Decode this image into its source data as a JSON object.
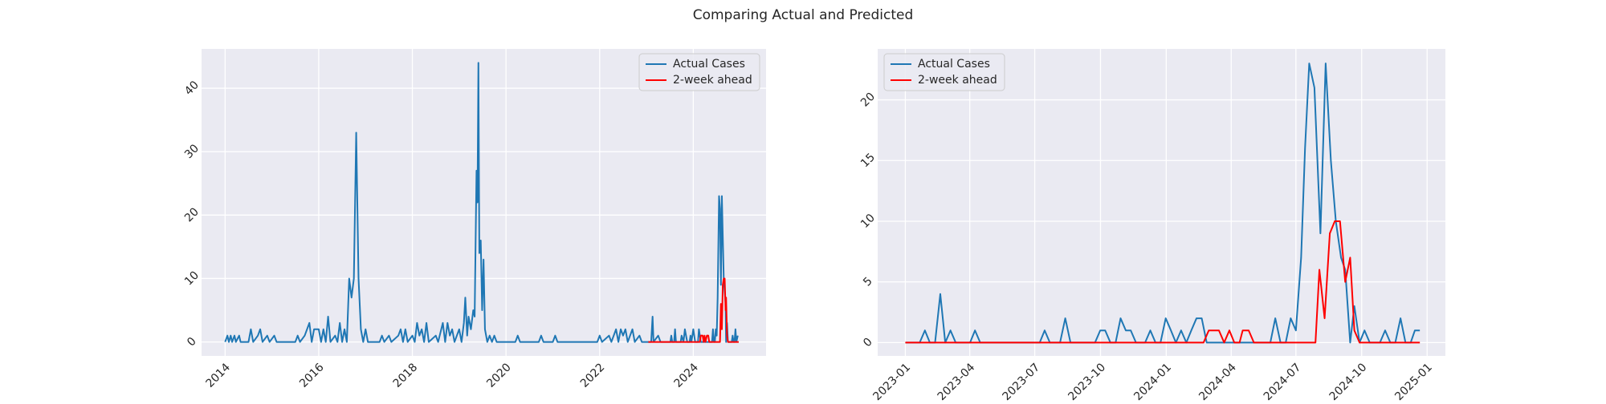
{
  "title": "Comparing Actual and Predicted",
  "chart_data": [
    {
      "type": "line",
      "grid": true,
      "legend": "upper right",
      "xlim": [
        2013.497,
        2025.554
      ],
      "ylim": [
        -2.2,
        46.2
      ],
      "xticks": [
        2014,
        2016,
        2018,
        2020,
        2022,
        2024
      ],
      "yticks": [
        0,
        10,
        20,
        30,
        40
      ],
      "series": [
        {
          "name": "Actual Cases",
          "color": "#1f77b4",
          "x": [
            2014.0,
            2014.05,
            2014.08,
            2014.12,
            2014.15,
            2014.2,
            2014.23,
            2014.3,
            2014.33,
            2014.5,
            2014.55,
            2014.6,
            2014.7,
            2014.75,
            2014.8,
            2014.9,
            2014.95,
            2015.05,
            2015.1,
            2015.5,
            2015.55,
            2015.6,
            2015.7,
            2015.8,
            2015.85,
            2015.9,
            2016.0,
            2016.05,
            2016.1,
            2016.15,
            2016.2,
            2016.25,
            2016.35,
            2016.4,
            2016.45,
            2016.5,
            2016.55,
            2016.6,
            2016.65,
            2016.7,
            2016.75,
            2016.8,
            2016.85,
            2016.9,
            2016.95,
            2017.0,
            2017.05,
            2017.3,
            2017.35,
            2017.4,
            2017.5,
            2017.55,
            2017.7,
            2017.75,
            2017.8,
            2017.85,
            2017.9,
            2018.0,
            2018.05,
            2018.1,
            2018.15,
            2018.2,
            2018.25,
            2018.3,
            2018.35,
            2018.5,
            2018.55,
            2018.65,
            2018.7,
            2018.75,
            2018.8,
            2018.85,
            2018.9,
            2019.0,
            2019.05,
            2019.1,
            2019.13,
            2019.17,
            2019.2,
            2019.25,
            2019.3,
            2019.33,
            2019.37,
            2019.39,
            2019.41,
            2019.43,
            2019.46,
            2019.49,
            2019.52,
            2019.55,
            2019.6,
            2019.65,
            2019.7,
            2019.75,
            2019.8,
            2020.2,
            2020.25,
            2020.3,
            2020.7,
            2020.75,
            2020.8,
            2021.0,
            2021.05,
            2021.1,
            2021.95,
            2022.0,
            2022.05,
            2022.2,
            2022.25,
            2022.35,
            2022.4,
            2022.45,
            2022.5,
            2022.55,
            2022.6,
            2022.7,
            2022.75,
            2022.85,
            2022.9,
            2023.1,
            2023.13,
            2023.15,
            2023.25,
            2023.3,
            2023.51,
            2023.53,
            2023.55,
            2023.59,
            2023.61,
            2023.63,
            2023.73,
            2023.75,
            2023.79,
            2023.82,
            2023.87,
            2023.92,
            2023.94,
            2023.96,
            2024.0,
            2024.04,
            2024.1,
            2024.12,
            2024.16,
            2024.4,
            2024.42,
            2024.44,
            2024.46,
            2024.48,
            2024.5,
            2024.52,
            2024.55,
            2024.57,
            2024.59,
            2024.61,
            2024.65,
            2024.69,
            2024.7,
            2024.72,
            2024.74,
            2024.82,
            2024.84,
            2024.86,
            2024.88,
            2024.9,
            2024.92,
            2024.95
          ],
          "values": [
            0,
            1,
            0,
            1,
            0,
            1,
            0,
            1,
            0,
            0,
            2,
            0,
            1,
            2,
            0,
            1,
            0,
            1,
            0,
            0,
            1,
            0,
            1,
            3,
            0,
            2,
            2,
            0,
            2,
            0,
            4,
            0,
            1,
            0,
            3,
            0,
            2,
            0,
            10,
            7,
            10,
            33,
            10,
            2,
            0,
            2,
            0,
            0,
            1,
            0,
            1,
            0,
            1,
            2,
            0,
            2,
            0,
            1,
            0,
            3,
            1,
            2,
            0,
            3,
            0,
            1,
            0,
            3,
            0,
            3,
            1,
            2,
            0,
            2,
            0,
            3,
            7,
            1,
            4,
            2,
            5,
            4,
            27,
            22,
            44,
            14,
            16,
            5,
            13,
            2,
            0,
            1,
            0,
            1,
            0,
            0,
            1,
            0,
            0,
            1,
            0,
            0,
            1,
            0,
            0,
            1,
            0,
            1,
            0,
            2,
            0,
            2,
            1,
            2,
            0,
            2,
            0,
            1,
            0,
            0,
            4,
            0,
            1,
            0,
            0,
            1,
            0,
            0,
            2,
            0,
            0,
            1,
            0,
            2,
            0,
            0,
            1,
            0,
            2,
            0,
            0,
            2,
            0,
            0,
            2,
            0,
            0,
            2,
            1,
            7,
            23,
            21,
            9,
            23,
            10,
            6,
            0,
            3,
            0,
            0,
            1,
            0,
            0,
            2,
            0,
            1
          ]
        },
        {
          "name": "2-week ahead",
          "color": "#ff0000",
          "x": [
            2023.04,
            2024.14,
            2024.16,
            2024.2,
            2024.22,
            2024.24,
            2024.26,
            2024.29,
            2024.32,
            2024.34,
            2024.57,
            2024.59,
            2024.61,
            2024.63,
            2024.65,
            2024.67,
            2024.69,
            2024.7,
            2024.72,
            2024.74,
            2024.97
          ],
          "values": [
            0,
            0,
            1,
            1,
            0,
            1,
            0,
            1,
            1,
            0,
            0,
            6,
            2,
            9,
            10,
            10,
            5,
            7,
            1,
            0,
            0
          ]
        }
      ]
    },
    {
      "type": "line",
      "grid": true,
      "legend": "upper left",
      "xlim": [
        2022.894,
        2025.07
      ],
      "ylim": [
        -1.1,
        24.2
      ],
      "xticks": [
        {
          "value": 2023.0,
          "label": "2023-01"
        },
        {
          "value": 2023.247,
          "label": "2023-04"
        },
        {
          "value": 2023.496,
          "label": "2023-07"
        },
        {
          "value": 2023.748,
          "label": "2023-10"
        },
        {
          "value": 2024.0,
          "label": "2024-01"
        },
        {
          "value": 2024.249,
          "label": "2024-04"
        },
        {
          "value": 2024.497,
          "label": "2024-07"
        },
        {
          "value": 2024.749,
          "label": "2024-10"
        },
        {
          "value": 2025.0,
          "label": "2025-01"
        }
      ],
      "yticks": [
        0,
        5,
        10,
        15,
        20
      ],
      "series": [
        {
          "name": "Actual Cases",
          "color": "#1f77b4",
          "x": [
            2023.0,
            2023.055,
            2023.075,
            2023.094,
            2023.114,
            2023.134,
            2023.153,
            2023.173,
            2023.193,
            2023.248,
            2023.267,
            2023.287,
            2023.515,
            2023.534,
            2023.554,
            2023.593,
            2023.613,
            2023.633,
            2023.727,
            2023.747,
            2023.766,
            2023.786,
            2023.806,
            2023.825,
            2023.845,
            2023.864,
            2023.884,
            2023.919,
            2023.939,
            2023.959,
            2023.978,
            2023.998,
            2024.018,
            2024.037,
            2024.057,
            2024.077,
            2024.096,
            2024.116,
            2024.136,
            2024.155,
            2024.399,
            2024.418,
            2024.438,
            2024.458,
            2024.477,
            2024.497,
            2024.517,
            2024.532,
            2024.548,
            2024.568,
            2024.591,
            2024.611,
            2024.631,
            2024.65,
            2024.67,
            2024.686,
            2024.705,
            2024.721,
            2024.741,
            2024.76,
            2024.78,
            2024.819,
            2024.839,
            2024.859,
            2024.878,
            2024.898,
            2024.917,
            2024.937,
            2024.953,
            2024.972
          ],
          "values": [
            0,
            0,
            1,
            0,
            0,
            4,
            0,
            1,
            0,
            0,
            1,
            0,
            0,
            1,
            0,
            0,
            2,
            0,
            0,
            1,
            1,
            0,
            0,
            2,
            1,
            1,
            0,
            0,
            1,
            0,
            0,
            2,
            1,
            0,
            1,
            0,
            1,
            2,
            2,
            0,
            0,
            2,
            0,
            0,
            2,
            1,
            7,
            16,
            23,
            21,
            9,
            23,
            15,
            10,
            7,
            6,
            0,
            3,
            0,
            1,
            0,
            0,
            1,
            0,
            0,
            2,
            0,
            0,
            1,
            1
          ]
        },
        {
          "name": "2-week ahead",
          "color": "#ff0000",
          "x": [
            2023.0,
            2024.143,
            2024.163,
            2024.202,
            2024.222,
            2024.242,
            2024.261,
            2024.281,
            2024.293,
            2024.316,
            2024.336,
            2024.572,
            2024.587,
            2024.607,
            2024.627,
            2024.646,
            2024.666,
            2024.686,
            2024.705,
            2024.721,
            2024.741,
            2024.972
          ],
          "values": [
            0,
            0,
            1,
            1,
            0,
            1,
            0,
            0,
            1,
            1,
            0,
            0,
            6,
            2,
            9,
            10,
            10,
            5,
            7,
            1,
            0,
            0
          ]
        }
      ]
    }
  ]
}
